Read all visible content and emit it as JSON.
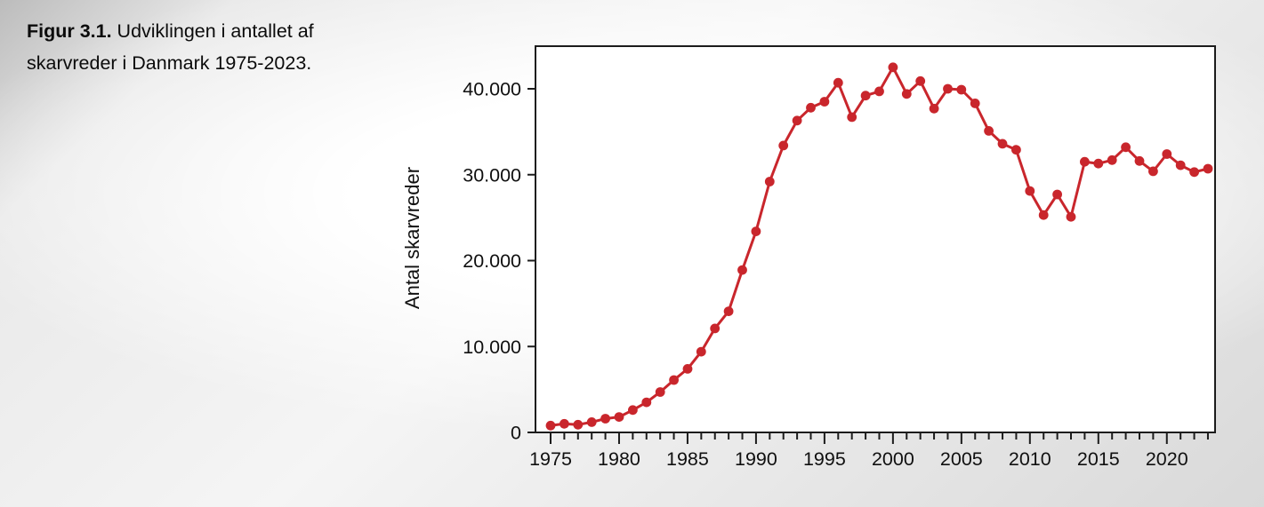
{
  "caption": {
    "label": "Figur 3.1.",
    "text": " Udviklingen i antallet af skarvreder i Danmark 1975-2023."
  },
  "chart_data": {
    "type": "line",
    "title": "",
    "xlabel": "",
    "ylabel": "Antal skarvreder",
    "grid": false,
    "legend": false,
    "xlim": [
      1973.9,
      2023.5
    ],
    "ylim": [
      0,
      45000
    ],
    "yticks": [
      0,
      10000,
      20000,
      30000,
      40000
    ],
    "ytick_labels": [
      "0",
      "10.000",
      "20.000",
      "30.000",
      "40.000"
    ],
    "xtick_positions": [
      1975,
      1980,
      1985,
      1990,
      1995,
      2000,
      2005,
      2010,
      2015,
      2020
    ],
    "xtick_labels": [
      "1975",
      "1980",
      "1985",
      "1990",
      "1995",
      "2000",
      "2005",
      "2010",
      "2015",
      "2020"
    ],
    "x": [
      1975,
      1976,
      1977,
      1978,
      1979,
      1980,
      1981,
      1982,
      1983,
      1984,
      1985,
      1986,
      1987,
      1988,
      1989,
      1990,
      1991,
      1992,
      1993,
      1994,
      1995,
      1996,
      1997,
      1998,
      1999,
      2000,
      2001,
      2002,
      2003,
      2004,
      2005,
      2006,
      2007,
      2008,
      2009,
      2010,
      2011,
      2012,
      2013,
      2014,
      2015,
      2016,
      2017,
      2018,
      2019,
      2020,
      2021,
      2022,
      2023
    ],
    "series": [
      {
        "name": "Antal skarvreder",
        "values": [
          800,
          1000,
          900,
          1200,
          1600,
          1800,
          2600,
          3500,
          4700,
          6100,
          7400,
          9400,
          12100,
          14100,
          18900,
          23400,
          29200,
          33400,
          36300,
          37800,
          38500,
          40700,
          36700,
          39200,
          39700,
          42500,
          39400,
          40900,
          37700,
          40000,
          39900,
          38300,
          35100,
          33600,
          32900,
          28100,
          25300,
          27700,
          25100,
          31500,
          31300,
          31700,
          33200,
          31600,
          30400,
          32400,
          31100,
          30300,
          30700
        ]
      }
    ],
    "colors": {
      "line": "#c9262c",
      "marker": "#c9262c",
      "axis": "#1c1c1c",
      "plot_background": "#ffffff",
      "text": "#101010"
    },
    "marker_style": "circle"
  }
}
